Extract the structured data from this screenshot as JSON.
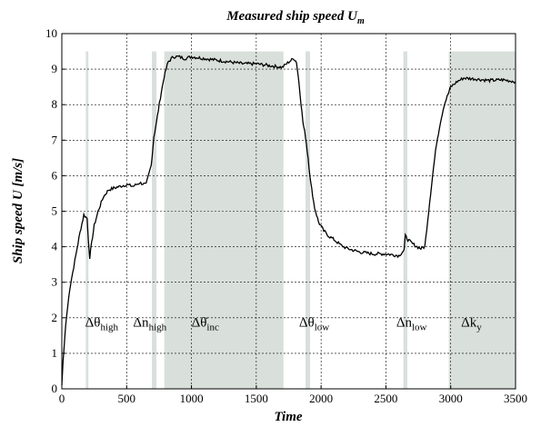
{
  "chart_data": {
    "type": "line",
    "title": "Measured ship speed U",
    "title_sub": "m",
    "xlabel": "Time",
    "ylabel": "Ship speed U [m/s]",
    "xlim": [
      0,
      3500
    ],
    "ylim": [
      0,
      10
    ],
    "xticks": [
      0,
      500,
      1000,
      1500,
      2000,
      2500,
      3000,
      3500
    ],
    "yticks": [
      0,
      1,
      2,
      3,
      4,
      5,
      6,
      7,
      8,
      9,
      10
    ],
    "grid": true,
    "band_top": 9.5,
    "band_color": "#d9e0dc",
    "line_color": "#000000",
    "bands": [
      {
        "x0": 185,
        "x1": 205
      },
      {
        "x0": 695,
        "x1": 730
      },
      {
        "x0": 790,
        "x1": 1710
      },
      {
        "x0": 1880,
        "x1": 1915
      },
      {
        "x0": 2635,
        "x1": 2665
      },
      {
        "x0": 2985,
        "x1": 3500
      }
    ],
    "annotations": [
      {
        "label": "Δθ",
        "sub": "high",
        "x": 180,
        "y": 1.75
      },
      {
        "label": "Δn",
        "sub": "high",
        "x": 550,
        "y": 1.75
      },
      {
        "label": "Δθ̇",
        "sub": "inc",
        "x": 1000,
        "y": 1.75
      },
      {
        "label": "Δθ",
        "sub": "low",
        "x": 1830,
        "y": 1.75
      },
      {
        "label": "Δn",
        "sub": "low",
        "x": 2580,
        "y": 1.75
      },
      {
        "label": "Δk",
        "sub": "y",
        "x": 3080,
        "y": 1.75
      }
    ],
    "series": [
      {
        "x": [
          0,
          10,
          30,
          60,
          100,
          140,
          170,
          195,
          205,
          215,
          230,
          250,
          280,
          320,
          360,
          400,
          450,
          500,
          550,
          600,
          650,
          690,
          710,
          730,
          760,
          790,
          820,
          860,
          900,
          950,
          1000,
          1100,
          1200,
          1300,
          1400,
          1500,
          1600,
          1700,
          1750,
          1790,
          1810,
          1830,
          1860,
          1880,
          1900,
          1920,
          1950,
          1980,
          2020,
          2060,
          2100,
          2150,
          2200,
          2300,
          2400,
          2500,
          2600,
          2640,
          2650,
          2670,
          2700,
          2740,
          2770,
          2800,
          2830,
          2860,
          2890,
          2920,
          2950,
          2980,
          3000,
          3050,
          3100,
          3200,
          3300,
          3400,
          3500
        ],
        "y": [
          0.1,
          0.8,
          1.8,
          2.8,
          3.6,
          4.4,
          4.9,
          4.8,
          4.2,
          3.7,
          4.1,
          4.6,
          5.0,
          5.4,
          5.6,
          5.65,
          5.7,
          5.75,
          5.7,
          5.8,
          5.75,
          6.3,
          7.1,
          7.5,
          8.2,
          8.8,
          9.2,
          9.35,
          9.35,
          9.3,
          9.35,
          9.3,
          9.25,
          9.2,
          9.15,
          9.15,
          9.1,
          9.05,
          9.2,
          9.3,
          9.2,
          8.6,
          7.5,
          7.1,
          6.5,
          5.8,
          5.1,
          4.7,
          4.45,
          4.3,
          4.2,
          4.05,
          3.95,
          3.85,
          3.8,
          3.8,
          3.75,
          3.9,
          4.3,
          4.2,
          4.1,
          4.0,
          3.95,
          4.0,
          5.0,
          6.0,
          6.9,
          7.5,
          8.0,
          8.3,
          8.5,
          8.65,
          8.75,
          8.72,
          8.68,
          8.7,
          8.65
        ]
      }
    ]
  }
}
